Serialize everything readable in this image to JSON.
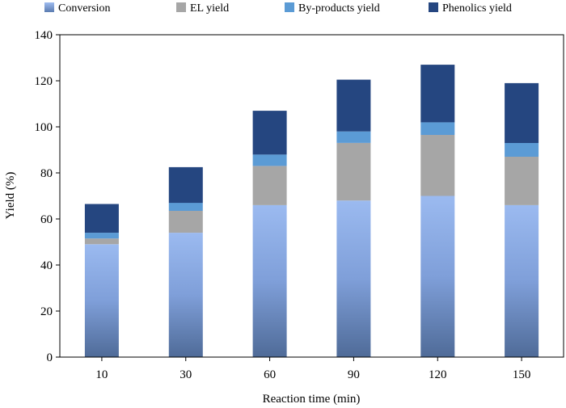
{
  "chart_data": {
    "type": "bar",
    "stacked": true,
    "title": "",
    "xlabel": "Reaction time (min)",
    "ylabel": "Yield (%)",
    "ylim": [
      0,
      140
    ],
    "yticks": [
      0,
      20,
      40,
      60,
      80,
      100,
      120,
      140
    ],
    "categories": [
      "10",
      "30",
      "60",
      "90",
      "120",
      "150"
    ],
    "grid": false,
    "legend_position": "top",
    "series": [
      {
        "name": "Conversion",
        "color": "#7f9fd9",
        "values": [
          49,
          54,
          66,
          68,
          70,
          66
        ]
      },
      {
        "name": "EL yield",
        "color": "#a6a6a6",
        "values": [
          2.5,
          9.5,
          17,
          25,
          26.5,
          21
        ]
      },
      {
        "name": "By-products yield",
        "color": "#5b9bd5",
        "values": [
          2.5,
          3.5,
          5,
          5,
          5.5,
          6
        ]
      },
      {
        "name": "Phenolics yield",
        "color": "#254680",
        "values": [
          12.5,
          15.5,
          19,
          22.5,
          25,
          26
        ]
      }
    ]
  }
}
